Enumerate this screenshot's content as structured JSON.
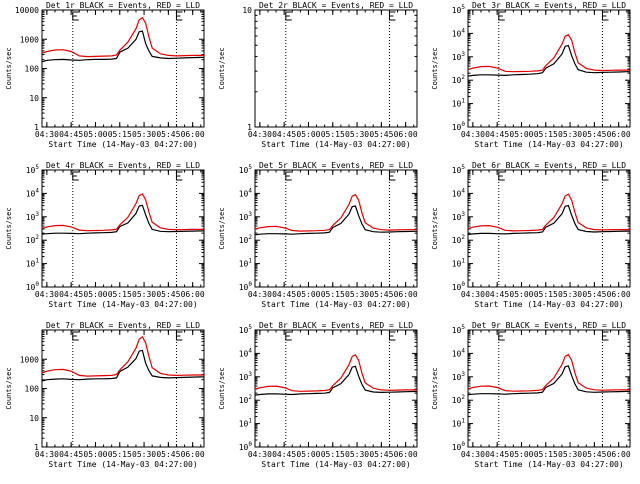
{
  "window": {
    "background": "#ffffff",
    "axis_color": "#000000"
  },
  "x_ticks": [
    "04:30",
    "04:45",
    "05:00",
    "05:15",
    "05:30",
    "05:45",
    "06:00"
  ],
  "x_start": "04:27:00",
  "x_end": "06:07:00",
  "x_markers": [
    "04:46",
    "05:50"
  ],
  "colors": {
    "events": "#000000",
    "lld": "#e00000",
    "markers": "#000000"
  },
  "chart_data": [
    {
      "type": "line",
      "title": "Det 1r BLACK = Events, RED = LLD",
      "xlabel": "Start Time (14-May-03 04:27:00)",
      "ylabel": "Counts/sec",
      "yscale": "log",
      "ylim": [
        1,
        10000
      ],
      "ytick_labels": [
        "1",
        "10",
        "100",
        "1000",
        "10000"
      ],
      "x": [
        "04:27",
        "04:30",
        "04:35",
        "04:40",
        "04:45",
        "04:50",
        "04:55",
        "05:00",
        "05:05",
        "05:10",
        "05:13",
        "05:15",
        "05:20",
        "05:25",
        "05:27",
        "05:29",
        "05:31",
        "05:33",
        "05:35",
        "05:40",
        "05:45",
        "05:50",
        "05:55",
        "06:00",
        "06:05",
        "06:07"
      ],
      "series": [
        {
          "name": "Events",
          "color": "#000000",
          "values": [
            170,
            190,
            200,
            205,
            195,
            190,
            200,
            205,
            205,
            210,
            220,
            360,
            500,
            1000,
            1800,
            1900,
            700,
            400,
            260,
            230,
            220,
            225,
            230,
            235,
            240,
            240
          ]
        },
        {
          "name": "LLD",
          "color": "#e00000",
          "values": [
            330,
            380,
            430,
            440,
            380,
            270,
            255,
            260,
            265,
            270,
            290,
            420,
            800,
            2300,
            4600,
            5500,
            3500,
            1200,
            500,
            320,
            280,
            270,
            275,
            280,
            280,
            280
          ]
        }
      ]
    },
    {
      "type": "line",
      "title": "Det 2r BLACK = Events, RED = LLD",
      "xlabel": "Start Time (14-May-03 04:27:00)",
      "ylabel": "Counts/sec",
      "yscale": "log",
      "ylim": [
        1,
        10
      ],
      "ytick_labels": [
        "1",
        "10"
      ],
      "x": [],
      "series": []
    },
    {
      "type": "line",
      "title": "Det 3r BLACK = Events, RED = LLD",
      "xlabel": "Start Time (14-May-03 04:27:00)",
      "ylabel": "Counts/sec",
      "yscale": "log",
      "ylim": [
        1,
        100000
      ],
      "ytick_labels": [
        "10^0",
        "10^1",
        "10^2",
        "10^3",
        "10^4",
        "10^5"
      ],
      "x": [
        "04:27",
        "04:30",
        "04:35",
        "04:40",
        "04:45",
        "04:50",
        "04:55",
        "05:00",
        "05:05",
        "05:10",
        "05:13",
        "05:15",
        "05:20",
        "05:25",
        "05:27",
        "05:29",
        "05:31",
        "05:33",
        "05:35",
        "05:40",
        "05:45",
        "05:50",
        "05:55",
        "06:00",
        "06:05",
        "06:07"
      ],
      "series": [
        {
          "name": "Events",
          "color": "#000000",
          "values": [
            150,
            160,
            170,
            170,
            165,
            160,
            170,
            175,
            180,
            190,
            210,
            330,
            500,
            1300,
            2800,
            3000,
            1100,
            500,
            280,
            220,
            210,
            215,
            220,
            225,
            230,
            230
          ]
        },
        {
          "name": "LLD",
          "color": "#e00000",
          "values": [
            280,
            330,
            380,
            390,
            330,
            240,
            230,
            235,
            240,
            250,
            270,
            420,
            900,
            3500,
            7500,
            8800,
            5000,
            1500,
            550,
            320,
            270,
            260,
            265,
            270,
            270,
            270
          ]
        }
      ]
    },
    {
      "type": "line",
      "title": "Det 4r BLACK = Events, RED = LLD",
      "xlabel": "Start Time (14-May-03 04:27:00)",
      "ylabel": "Counts/sec",
      "yscale": "log",
      "ylim": [
        1,
        100000
      ],
      "ytick_labels": [
        "10^0",
        "10^1",
        "10^2",
        "10^3",
        "10^4",
        "10^5"
      ],
      "x": [
        "04:27",
        "04:30",
        "04:35",
        "04:40",
        "04:45",
        "04:50",
        "04:55",
        "05:00",
        "05:05",
        "05:10",
        "05:13",
        "05:15",
        "05:20",
        "05:25",
        "05:27",
        "05:29",
        "05:31",
        "05:33",
        "05:35",
        "05:40",
        "05:45",
        "05:50",
        "05:55",
        "06:00",
        "06:05",
        "06:07"
      ],
      "series": [
        {
          "name": "Events",
          "color": "#000000",
          "values": [
            180,
            190,
            200,
            200,
            195,
            190,
            200,
            205,
            210,
            215,
            230,
            380,
            550,
            1400,
            2900,
            3100,
            1200,
            520,
            290,
            240,
            230,
            235,
            240,
            245,
            250,
            250
          ]
        },
        {
          "name": "LLD",
          "color": "#e00000",
          "values": [
            320,
            370,
            420,
            430,
            370,
            270,
            255,
            260,
            265,
            275,
            295,
            450,
            950,
            3700,
            8000,
            9500,
            5200,
            1600,
            580,
            340,
            290,
            280,
            285,
            290,
            290,
            290
          ]
        }
      ]
    },
    {
      "type": "line",
      "title": "Det 5r BLACK = Events, RED = LLD",
      "xlabel": "Start Time (14-May-03 04:27:00)",
      "ylabel": "Counts/sec",
      "yscale": "log",
      "ylim": [
        1,
        100000
      ],
      "ytick_labels": [
        "10^0",
        "10^1",
        "10^2",
        "10^3",
        "10^4",
        "10^5"
      ],
      "x": [
        "04:27",
        "04:30",
        "04:35",
        "04:40",
        "04:45",
        "04:50",
        "04:55",
        "05:00",
        "05:05",
        "05:10",
        "05:13",
        "05:15",
        "05:20",
        "05:25",
        "05:27",
        "05:29",
        "05:31",
        "05:33",
        "05:35",
        "05:40",
        "05:45",
        "05:50",
        "05:55",
        "06:00",
        "06:05",
        "06:07"
      ],
      "series": [
        {
          "name": "Events",
          "color": "#000000",
          "values": [
            170,
            180,
            190,
            190,
            185,
            180,
            190,
            195,
            200,
            205,
            220,
            350,
            520,
            1300,
            2700,
            2900,
            1100,
            500,
            280,
            230,
            220,
            225,
            230,
            235,
            240,
            240
          ]
        },
        {
          "name": "LLD",
          "color": "#e00000",
          "values": [
            300,
            340,
            380,
            390,
            340,
            260,
            245,
            250,
            255,
            265,
            285,
            430,
            900,
            3400,
            7600,
            9000,
            5000,
            1500,
            560,
            330,
            280,
            270,
            275,
            280,
            280,
            280
          ]
        }
      ]
    },
    {
      "type": "line",
      "title": "Det 6r BLACK = Events, RED = LLD",
      "xlabel": "Start Time (14-May-03 04:27:00)",
      "ylabel": "Counts/sec",
      "yscale": "log",
      "ylim": [
        1,
        100000
      ],
      "ytick_labels": [
        "10^0",
        "10^1",
        "10^2",
        "10^3",
        "10^4",
        "10^5"
      ],
      "x": [
        "04:27",
        "04:30",
        "04:35",
        "04:40",
        "04:45",
        "04:50",
        "04:55",
        "05:00",
        "05:05",
        "05:10",
        "05:13",
        "05:15",
        "05:20",
        "05:25",
        "05:27",
        "05:29",
        "05:31",
        "05:33",
        "05:35",
        "05:40",
        "05:45",
        "05:50",
        "05:55",
        "06:00",
        "06:05",
        "06:07"
      ],
      "series": [
        {
          "name": "Events",
          "color": "#000000",
          "values": [
            175,
            185,
            195,
            195,
            190,
            185,
            195,
            200,
            205,
            210,
            225,
            360,
            540,
            1350,
            2800,
            3000,
            1150,
            510,
            285,
            235,
            225,
            230,
            235,
            240,
            245,
            245
          ]
        },
        {
          "name": "LLD",
          "color": "#e00000",
          "values": [
            310,
            360,
            410,
            420,
            360,
            265,
            250,
            255,
            260,
            270,
            290,
            440,
            930,
            3600,
            7800,
            9200,
            5100,
            1550,
            570,
            335,
            285,
            275,
            280,
            285,
            285,
            285
          ]
        }
      ]
    },
    {
      "type": "line",
      "title": "Det 7r BLACK = Events, RED = LLD",
      "xlabel": "Start Time (14-May-03 04:27:00)",
      "ylabel": "Counts/sec",
      "yscale": "log",
      "ylim": [
        1,
        10000
      ],
      "ytick_labels": [
        "1",
        "10",
        "100",
        "1000"
      ],
      "x": [
        "04:27",
        "04:30",
        "04:35",
        "04:40",
        "04:45",
        "04:50",
        "04:55",
        "05:00",
        "05:05",
        "05:10",
        "05:13",
        "05:15",
        "05:20",
        "05:25",
        "05:27",
        "05:29",
        "05:31",
        "05:33",
        "05:35",
        "05:40",
        "05:45",
        "05:50",
        "05:55",
        "06:00",
        "06:05",
        "06:07"
      ],
      "series": [
        {
          "name": "Events",
          "color": "#000000",
          "values": [
            180,
            200,
            210,
            215,
            205,
            200,
            210,
            215,
            215,
            220,
            230,
            380,
            540,
            1050,
            1900,
            2000,
            720,
            410,
            270,
            240,
            230,
            235,
            240,
            245,
            250,
            250
          ]
        },
        {
          "name": "LLD",
          "color": "#e00000",
          "values": [
            340,
            390,
            440,
            450,
            390,
            280,
            265,
            270,
            275,
            280,
            300,
            430,
            820,
            2400,
            4800,
            5800,
            3600,
            1250,
            510,
            330,
            290,
            280,
            285,
            290,
            290,
            290
          ]
        }
      ]
    },
    {
      "type": "line",
      "title": "Det 8r BLACK = Events, RED = LLD",
      "xlabel": "Start Time (14-May-03 04:27:00)",
      "ylabel": "Counts/sec",
      "yscale": "log",
      "ylim": [
        1,
        100000
      ],
      "ytick_labels": [
        "10^0",
        "10^1",
        "10^2",
        "10^3",
        "10^4",
        "10^5"
      ],
      "x": [
        "04:27",
        "04:30",
        "04:35",
        "04:40",
        "04:45",
        "04:50",
        "04:55",
        "05:00",
        "05:05",
        "05:10",
        "05:13",
        "05:15",
        "05:20",
        "05:25",
        "05:27",
        "05:29",
        "05:31",
        "05:33",
        "05:35",
        "05:40",
        "05:45",
        "05:50",
        "05:55",
        "06:00",
        "06:05",
        "06:07"
      ],
      "series": [
        {
          "name": "Events",
          "color": "#000000",
          "values": [
            165,
            175,
            185,
            185,
            180,
            175,
            185,
            190,
            195,
            200,
            215,
            340,
            510,
            1250,
            2600,
            2800,
            1050,
            480,
            270,
            225,
            215,
            220,
            225,
            230,
            235,
            235
          ]
        },
        {
          "name": "LLD",
          "color": "#e00000",
          "values": [
            300,
            340,
            390,
            400,
            345,
            255,
            240,
            245,
            250,
            260,
            280,
            420,
            880,
            3300,
            7400,
            8700,
            4900,
            1450,
            550,
            325,
            275,
            265,
            270,
            275,
            275,
            275
          ]
        }
      ]
    },
    {
      "type": "line",
      "title": "Det 9r BLACK = Events, RED = LLD",
      "xlabel": "Start Time (14-May-03 04:27:00)",
      "ylabel": "Counts/sec",
      "yscale": "log",
      "ylim": [
        1,
        100000
      ],
      "ytick_labels": [
        "10^0",
        "10^1",
        "10^2",
        "10^3",
        "10^4",
        "10^5"
      ],
      "x": [
        "04:27",
        "04:30",
        "04:35",
        "04:40",
        "04:45",
        "04:50",
        "04:55",
        "05:00",
        "05:05",
        "05:10",
        "05:13",
        "05:15",
        "05:20",
        "05:25",
        "05:27",
        "05:29",
        "05:31",
        "05:33",
        "05:35",
        "05:40",
        "05:45",
        "05:50",
        "05:55",
        "06:00",
        "06:05",
        "06:07"
      ],
      "series": [
        {
          "name": "Events",
          "color": "#000000",
          "values": [
            170,
            180,
            190,
            190,
            185,
            180,
            190,
            195,
            200,
            205,
            220,
            350,
            520,
            1300,
            2700,
            2900,
            1100,
            495,
            278,
            228,
            218,
            223,
            228,
            233,
            238,
            238
          ]
        },
        {
          "name": "LLD",
          "color": "#e00000",
          "values": [
            305,
            350,
            395,
            405,
            350,
            258,
            243,
            248,
            253,
            263,
            283,
            428,
            895,
            3380,
            7550,
            8900,
            4980,
            1480,
            558,
            328,
            278,
            268,
            273,
            278,
            278,
            278
          ]
        }
      ]
    }
  ]
}
